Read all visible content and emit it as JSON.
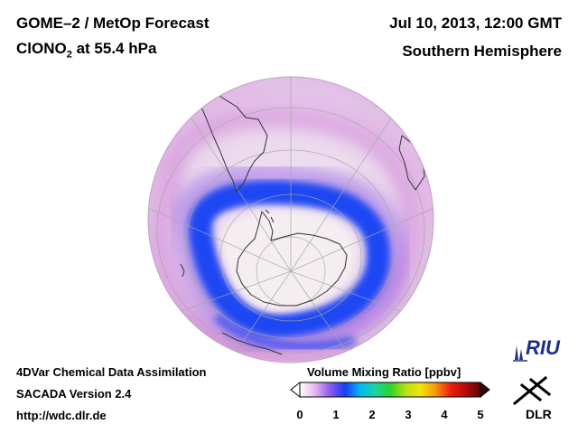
{
  "header": {
    "title_line1": "GOME–2 / MetOp Forecast",
    "title_line2_prefix": "ClONO",
    "title_line2_sub": "2",
    "title_line2_suffix": " at 55.4 hPa",
    "date": "Jul 10, 2013, 12:00 GMT",
    "region": "Southern Hemisphere"
  },
  "footer": {
    "line1": "4DVar Chemical Data Assimilation",
    "line2": "SACADA Version 2.4",
    "line3": "http://wdc.dlr.de"
  },
  "colorbar": {
    "title": "Volume Mixing Ratio [ppbv]",
    "ticks": [
      "0",
      "1",
      "2",
      "3",
      "4",
      "5"
    ],
    "range": [
      0,
      5
    ],
    "colors": [
      "#ffffff",
      "#e9b6ec",
      "#8a5cf0",
      "#1a3cf5",
      "#00b8f5",
      "#18d4a0",
      "#2cd22c",
      "#b6e012",
      "#f5e30a",
      "#f59a0a",
      "#f01e10",
      "#b80a0a",
      "#5c0404"
    ]
  },
  "map": {
    "projection": "orthographic",
    "hemisphere": "Southern Hemisphere",
    "colors": {
      "background_disk": "#ecdaee",
      "outer_band": "#dca4e2",
      "inner_band": "#1e48f2",
      "vortex_core": "#f3eff1",
      "coastline": "#333333",
      "graticule": "#a8a8a8"
    }
  },
  "logos": {
    "riu": "RIU",
    "dlr": "DLR"
  }
}
